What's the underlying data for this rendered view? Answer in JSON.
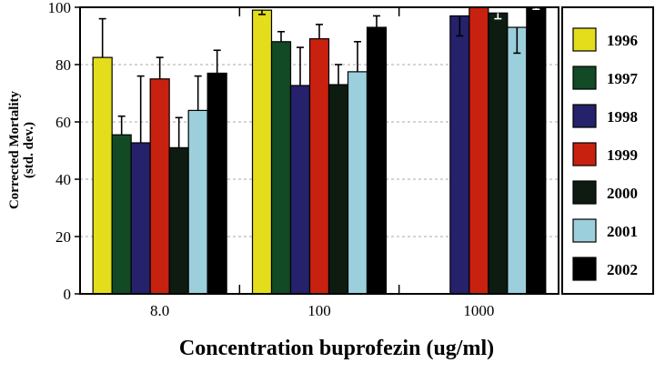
{
  "chart_data": {
    "type": "bar",
    "title": "",
    "xlabel": "Concentration buprofezin (ug/ml)",
    "ylabel": "Corrected Mortality",
    "ylabel_sub": "(std. dev.)",
    "ylim": [
      0,
      100
    ],
    "yticks": [
      0,
      20,
      40,
      60,
      80,
      100
    ],
    "grid": true,
    "legend_position": "right",
    "categories": [
      "8.0",
      "100",
      "1000"
    ],
    "series": [
      {
        "name": "1996",
        "color": "#e3dd1c",
        "values": [
          82.5,
          99,
          null
        ],
        "err": [
          13.5,
          1.5,
          null
        ],
        "err_dir": [
          "up",
          "down",
          null
        ]
      },
      {
        "name": "1997",
        "color": "#114a24",
        "values": [
          55.5,
          88,
          null
        ],
        "err": [
          6.5,
          3.5,
          null
        ],
        "err_dir": [
          "up",
          "up",
          null
        ]
      },
      {
        "name": "1998",
        "color": "#25216b",
        "values": [
          52.7,
          72.7,
          97
        ],
        "err": [
          23.3,
          13.3,
          7
        ],
        "err_dir": [
          "up",
          "up",
          "down"
        ]
      },
      {
        "name": "1999",
        "color": "#c8210f",
        "values": [
          75,
          89,
          100
        ],
        "err": [
          7.5,
          5,
          0.3
        ],
        "err_dir": [
          "up",
          "up",
          "down"
        ]
      },
      {
        "name": "2000",
        "color": "#0d1b11",
        "values": [
          51,
          73,
          98
        ],
        "err": [
          10.5,
          7,
          2
        ],
        "err_dir": [
          "up",
          "up",
          "down"
        ]
      },
      {
        "name": "2001",
        "color": "#9ccfdc",
        "values": [
          64,
          77.5,
          93
        ],
        "err": [
          12,
          10.5,
          9
        ],
        "err_dir": [
          "up",
          "up",
          "down"
        ]
      },
      {
        "name": "2002",
        "color": "#000000",
        "values": [
          77,
          93,
          100
        ],
        "err": [
          8,
          4,
          0.7
        ],
        "err_dir": [
          "up",
          "up",
          "down"
        ]
      }
    ]
  }
}
